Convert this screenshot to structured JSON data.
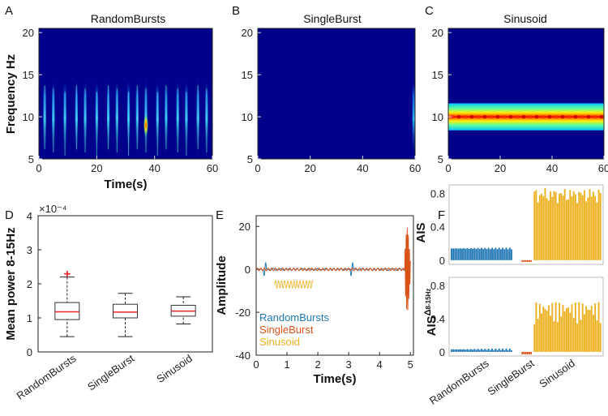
{
  "chart_data": [
    {
      "panel": "A",
      "type": "heatmap",
      "title": "RandomBursts",
      "xlabel": "Time(s)",
      "ylabel": "Frequency Hz",
      "xlim": [
        0,
        60
      ],
      "ylim": [
        5,
        20.5
      ],
      "xticks": [
        "0",
        "20",
        "40",
        "60"
      ],
      "yticks": [
        "5",
        "10",
        "15",
        "20"
      ],
      "burst_times": [
        2,
        5,
        9,
        13,
        16,
        20,
        24,
        27,
        31,
        34,
        37,
        41,
        44,
        48,
        51,
        55,
        58
      ],
      "burst_freq_range": [
        5,
        14.5
      ],
      "peak": {
        "time": 37,
        "freq": 9
      }
    },
    {
      "panel": "B",
      "type": "heatmap",
      "title": "SingleBurst",
      "xlim": [
        0,
        60
      ],
      "ylim": [
        5,
        20.5
      ],
      "xticks": [
        "0",
        "20",
        "40",
        "60"
      ],
      "yticks": [
        "5",
        "10",
        "15",
        "20"
      ],
      "burst_times": [
        59.5
      ],
      "burst_freq_range": [
        5,
        14.5
      ]
    },
    {
      "panel": "C",
      "type": "heatmap",
      "title": "Sinusoid",
      "xlim": [
        0,
        60
      ],
      "ylim": [
        5,
        20.5
      ],
      "xticks": [
        "0",
        "20",
        "40",
        "60"
      ],
      "yticks": [
        "5",
        "10",
        "15",
        "20"
      ],
      "band_hz": [
        9,
        11
      ],
      "peak_hz": 10
    },
    {
      "panel": "D",
      "type": "box",
      "ylabel": "Mean power 8-15Hz",
      "exponent": "×10⁻⁴",
      "ylim": [
        0,
        4
      ],
      "yticks": [
        "0",
        "1",
        "2",
        "3",
        "4"
      ],
      "categories": [
        "RandomBursts",
        "SingleBurst",
        "Sinusoid"
      ],
      "boxes": [
        {
          "name": "RandomBursts",
          "min": 0.45,
          "q1": 0.95,
          "median": 1.18,
          "q3": 1.45,
          "max": 2.2,
          "outliers": [
            2.3
          ]
        },
        {
          "name": "SingleBurst",
          "min": 0.45,
          "q1": 1.0,
          "median": 1.17,
          "q3": 1.4,
          "max": 1.72,
          "outliers": []
        },
        {
          "name": "Sinusoid",
          "min": 0.82,
          "q1": 1.05,
          "median": 1.2,
          "q3": 1.37,
          "max": 1.62,
          "outliers": []
        }
      ]
    },
    {
      "panel": "E",
      "type": "line",
      "xlabel": "Time(s)",
      "ylabel": "Amplitude",
      "xlim": [
        0,
        5.1
      ],
      "ylim": [
        -40,
        25
      ],
      "xticks": [
        "0",
        "1",
        "2",
        "3",
        "4",
        "5"
      ],
      "yticks": [
        "-40",
        "-20",
        "0",
        "20"
      ],
      "series": [
        {
          "name": "RandomBursts",
          "color": "#1f77b4"
        },
        {
          "name": "SingleBurst",
          "color": "#d95319"
        },
        {
          "name": "Sinusoid",
          "color": "#edb120"
        }
      ]
    },
    {
      "panel": "F",
      "type": "bar",
      "ylabel_top": "AIS",
      "ylabel_bottom": "AIS",
      "ylabel_bottom_sup": "Δ",
      "ylabel_bottom_sub": "8-15Hz",
      "ylim": [
        -0.05,
        0.9
      ],
      "yticks": [
        "0",
        "0.4",
        "0.8"
      ],
      "categories": [
        "RandomBursts",
        "SingleBurst",
        "Sinusoid"
      ],
      "top_levels": {
        "RandomBursts": 0.14,
        "SingleBurst": -0.02,
        "Sinusoid": 0.78
      },
      "bottom_levels": {
        "RandomBursts": 0.03,
        "SingleBurst": -0.03,
        "Sinusoid": 0.6
      }
    }
  ],
  "panel_labels": [
    "A",
    "B",
    "C",
    "D",
    "E",
    "F"
  ],
  "colors": {
    "blue": "#1f77b4",
    "orange": "#d95319",
    "yellow": "#edb120",
    "red": "#e8232a"
  }
}
